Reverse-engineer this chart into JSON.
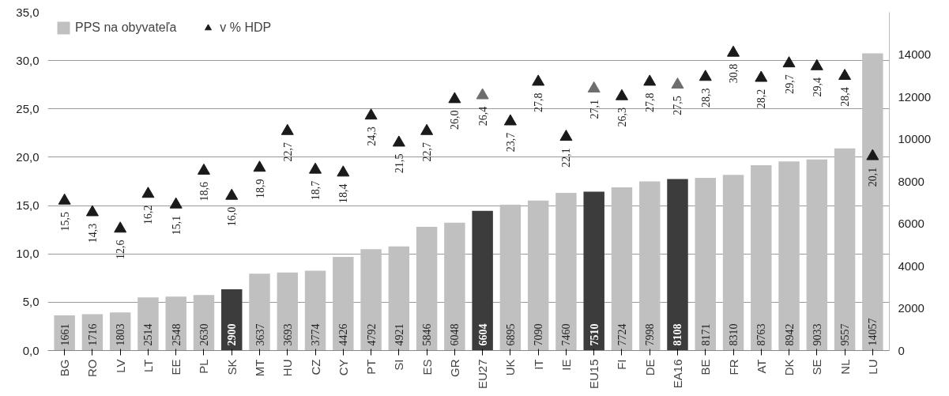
{
  "chart_data": {
    "type": "bar",
    "categories": [
      "BG",
      "RO",
      "LV",
      "LT",
      "EE",
      "PL",
      "SK",
      "MT",
      "HU",
      "CZ",
      "CY",
      "PT",
      "SI",
      "ES",
      "GR",
      "EU27",
      "UK",
      "IT",
      "IE",
      "EU15",
      "FI",
      "DE",
      "EA16",
      "BE",
      "FR",
      "AT",
      "DK",
      "SE",
      "NL",
      "LU"
    ],
    "series": [
      {
        "name": "PPS na obyvateľa",
        "axis": "y2",
        "colors": [
          "#c0c0c0",
          "#c0c0c0",
          "#c0c0c0",
          "#c0c0c0",
          "#c0c0c0",
          "#c0c0c0",
          "#3c3c3c",
          "#c0c0c0",
          "#c0c0c0",
          "#c0c0c0",
          "#c0c0c0",
          "#c0c0c0",
          "#c0c0c0",
          "#c0c0c0",
          "#c0c0c0",
          "#3c3c3c",
          "#c0c0c0",
          "#c0c0c0",
          "#c0c0c0",
          "#3c3c3c",
          "#c0c0c0",
          "#c0c0c0",
          "#3c3c3c",
          "#c0c0c0",
          "#c0c0c0",
          "#c0c0c0",
          "#c0c0c0",
          "#c0c0c0",
          "#c0c0c0",
          "#c0c0c0"
        ],
        "values": [
          1661,
          1716,
          1803,
          2514,
          2548,
          2630,
          2900,
          3637,
          3693,
          3774,
          4426,
          4792,
          4921,
          5846,
          6048,
          6604,
          6895,
          7090,
          7460,
          7510,
          7724,
          7998,
          8108,
          8171,
          8310,
          8763,
          8942,
          9033,
          9557,
          14057
        ],
        "value_labels": [
          "1661",
          "1716",
          "1803",
          "2514",
          "2548",
          "2630",
          "2900",
          "3637",
          "3693",
          "3774",
          "4426",
          "4792",
          "4921",
          "5846",
          "6048",
          "6604",
          "6895",
          "7090",
          "7460",
          "7510",
          "7724",
          "7998",
          "8108",
          "8171",
          "8310",
          "8763",
          "8942",
          "9033",
          "9557",
          "14057"
        ]
      },
      {
        "name": "v % HDP",
        "type": "scatter",
        "marker": "triangle",
        "colors": [
          "#1a1a1a",
          "#1a1a1a",
          "#1a1a1a",
          "#1a1a1a",
          "#1a1a1a",
          "#1a1a1a",
          "#1a1a1a",
          "#1a1a1a",
          "#1a1a1a",
          "#1a1a1a",
          "#1a1a1a",
          "#1a1a1a",
          "#1a1a1a",
          "#1a1a1a",
          "#1a1a1a",
          "#6e6e6e",
          "#1a1a1a",
          "#1a1a1a",
          "#1a1a1a",
          "#6e6e6e",
          "#1a1a1a",
          "#1a1a1a",
          "#6e6e6e",
          "#1a1a1a",
          "#1a1a1a",
          "#1a1a1a",
          "#1a1a1a",
          "#1a1a1a",
          "#1a1a1a",
          "#1a1a1a"
        ],
        "values": [
          15.5,
          14.3,
          12.6,
          16.2,
          15.1,
          18.6,
          16.0,
          18.9,
          22.7,
          18.7,
          18.4,
          24.3,
          21.5,
          22.7,
          26.0,
          26.4,
          23.7,
          27.8,
          22.1,
          27.1,
          26.3,
          27.8,
          27.5,
          28.3,
          30.8,
          28.2,
          29.7,
          29.4,
          28.4,
          20.1
        ],
        "value_labels": [
          "15,5",
          "14,3",
          "12,6",
          "16,2",
          "15,1",
          "18,6",
          "16,0",
          "18,9",
          "22,7",
          "18,7",
          "18,4",
          "24,3",
          "21,5",
          "22,7",
          "26,0",
          "26,4",
          "23,7",
          "27,8",
          "22,1",
          "27,1",
          "26,3",
          "27,8",
          "27,5",
          "28,3",
          "30,8",
          "28,2",
          "29,7",
          "29,4",
          "28,4",
          "20,1"
        ]
      }
    ],
    "ylim": [
      0,
      35
    ],
    "yticks": [
      {
        "value": 0,
        "label": "0,0"
      },
      {
        "value": 5,
        "label": "5,0"
      },
      {
        "value": 10,
        "label": "10,0"
      },
      {
        "value": 15,
        "label": "15,0"
      },
      {
        "value": 20,
        "label": "20,0"
      },
      {
        "value": 25,
        "label": "25,0"
      },
      {
        "value": 30,
        "label": "30,0"
      },
      {
        "value": 35,
        "label": "35,0"
      }
    ],
    "y2lim": [
      0,
      16000
    ],
    "y2ticks": [
      0,
      2000,
      4000,
      6000,
      8000,
      10000,
      12000,
      14000
    ],
    "grid": "y",
    "legend": "top left"
  }
}
